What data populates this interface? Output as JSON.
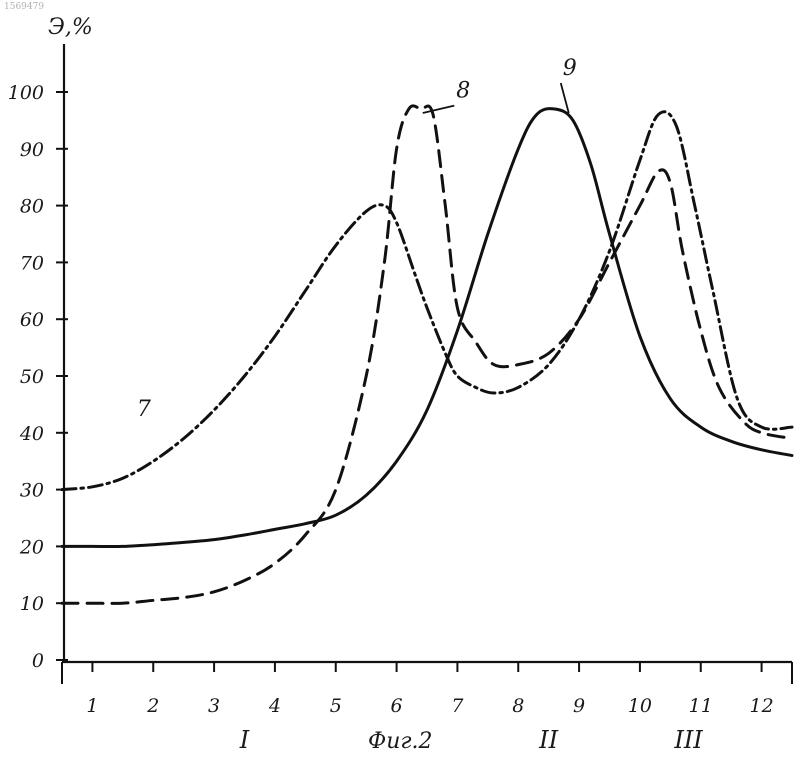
{
  "corner_id": "1569479",
  "chart_data": {
    "type": "line",
    "ylabel": "Э,%",
    "caption": "Фиг.2",
    "y_ticks": [
      "0",
      "10",
      "20",
      "30",
      "40",
      "50",
      "60",
      "70",
      "80",
      "90",
      "100"
    ],
    "x_ticks": [
      "1",
      "2",
      "3",
      "4",
      "5",
      "6",
      "7",
      "8",
      "9",
      "10",
      "11",
      "12"
    ],
    "x_range": [
      0.5,
      12.5
    ],
    "ylim": [
      0,
      100
    ],
    "regions": [
      {
        "label": "I",
        "x": 3.5
      },
      {
        "label": "II",
        "x": 8.5
      },
      {
        "label": "III",
        "x": 10.8
      }
    ],
    "series": [
      {
        "name": "7",
        "style": "dash-dot",
        "label_at": [
          1.6,
          43
        ],
        "x": [
          0.5,
          1.0,
          1.5,
          2.0,
          2.5,
          3.0,
          3.5,
          4.0,
          4.5,
          5.0,
          5.5,
          5.8,
          6.0,
          6.3,
          6.5,
          6.8,
          7.0,
          7.3,
          7.6,
          8.0,
          8.5,
          9.0,
          9.5,
          10.0,
          10.3,
          10.6,
          10.9,
          11.2,
          11.6,
          12.0,
          12.5
        ],
        "y": [
          30,
          30.5,
          32,
          35,
          39,
          44,
          50,
          57,
          65,
          73,
          79,
          80,
          77,
          68,
          62,
          54,
          50,
          48,
          47,
          48,
          52,
          60,
          72,
          88,
          96,
          94,
          80,
          65,
          46,
          41,
          41
        ]
      },
      {
        "name": "8",
        "style": "dashed",
        "label_at": [
          6.85,
          99
        ],
        "x": [
          0.5,
          1.0,
          1.5,
          2.0,
          2.5,
          3.0,
          3.5,
          4.0,
          4.5,
          5.0,
          5.5,
          5.8,
          6.0,
          6.2,
          6.4,
          6.6,
          6.8,
          7.0,
          7.3,
          7.6,
          8.0,
          8.5,
          9.0,
          9.5,
          10.0,
          10.3,
          10.5,
          10.7,
          11.0,
          11.3,
          11.7,
          12.0,
          12.5
        ],
        "y": [
          10,
          10,
          10,
          10.5,
          11,
          12,
          14,
          17,
          22,
          30,
          50,
          70,
          90,
          97,
          97,
          96,
          80,
          62,
          56,
          52,
          52,
          54,
          60,
          70,
          80,
          86,
          84,
          72,
          58,
          48,
          42,
          40,
          39
        ]
      },
      {
        "name": "9",
        "style": "solid",
        "label_at": [
          8.6,
          103
        ],
        "x": [
          0.5,
          1.0,
          1.5,
          2.0,
          2.5,
          3.0,
          3.5,
          4.0,
          4.5,
          5.0,
          5.5,
          6.0,
          6.5,
          7.0,
          7.5,
          8.0,
          8.3,
          8.6,
          8.9,
          9.2,
          9.5,
          10.0,
          10.5,
          11.0,
          11.5,
          12.0,
          12.5
        ],
        "y": [
          20,
          20,
          20,
          20.3,
          20.7,
          21.2,
          22,
          23,
          24,
          25.5,
          29,
          35,
          44,
          58,
          75,
          90,
          96,
          97,
          95,
          87,
          75,
          57,
          46,
          41,
          38.5,
          37,
          36
        ]
      }
    ]
  }
}
